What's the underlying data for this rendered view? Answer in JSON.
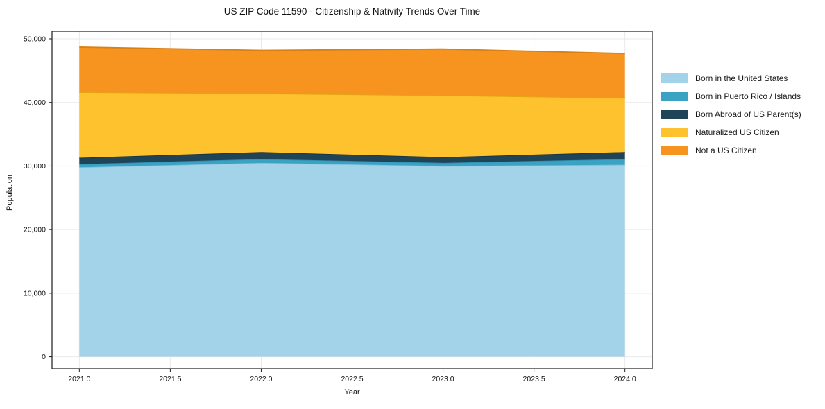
{
  "chart_data": {
    "type": "area",
    "stacked": true,
    "title": "US ZIP Code 11590 - Citizenship & Nativity Trends Over Time",
    "xlabel": "Year",
    "ylabel": "Population",
    "x": [
      2021,
      2022,
      2023,
      2024
    ],
    "series": [
      {
        "name": "Born in the United States",
        "color": "#a3d3e8",
        "edge": "#7fc0dc",
        "values": [
          29800,
          30500,
          30000,
          30200
        ]
      },
      {
        "name": "Born in Puerto Rico / Islands",
        "color": "#3aa2c2",
        "edge": "#2e8fb0",
        "values": [
          500,
          600,
          500,
          900
        ]
      },
      {
        "name": "Born Abroad of US Parent(s)",
        "color": "#1f4457",
        "edge": "#16323f",
        "values": [
          1000,
          1100,
          900,
          1100
        ]
      },
      {
        "name": "Naturalized US Citizen",
        "color": "#fdc22e",
        "edge": "#e2a713",
        "values": [
          10300,
          9200,
          9700,
          8500
        ]
      },
      {
        "name": "Not a US Citizen",
        "color": "#f7941f",
        "edge": "#db7f12",
        "values": [
          7100,
          6800,
          7300,
          7000
        ]
      }
    ],
    "xlim": [
      2020.85,
      2024.15
    ],
    "ylim": [
      -1900,
      51200
    ],
    "x_ticks": {
      "values": [
        2021,
        2021.5,
        2022,
        2022.5,
        2023,
        2023.5,
        2024
      ],
      "labels": [
        "2021.0",
        "2021.5",
        "2022.0",
        "2022.5",
        "2023.0",
        "2023.5",
        "2024.0"
      ]
    },
    "y_ticks": {
      "values": [
        0,
        10000,
        20000,
        30000,
        40000,
        50000
      ],
      "labels": [
        "0",
        "10,000",
        "20,000",
        "30,000",
        "40,000",
        "50,000"
      ]
    },
    "grid": true,
    "legend_position": "right-outside",
    "colors": {
      "grid": "#e9e9e9",
      "spine": "#1a1a1a",
      "background": "#ffffff"
    }
  }
}
